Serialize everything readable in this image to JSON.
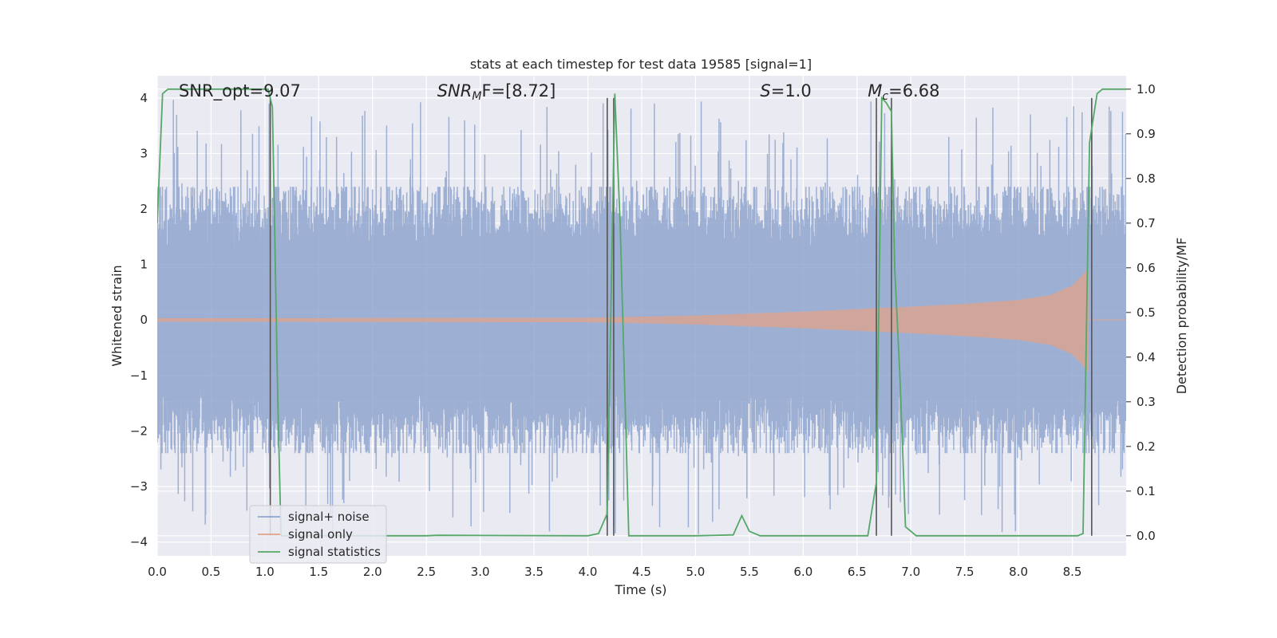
{
  "chart_data": {
    "type": "line",
    "title": "stats at each timestep for test data 19585 [signal=1]",
    "xlabel": "Time (s)",
    "ylabel": "Whitened strain",
    "y2label": "Detection probability/MF",
    "xlim": [
      0.0,
      9.0
    ],
    "ylim": [
      -4.25,
      4.4
    ],
    "y2lim": [
      -0.045,
      1.03
    ],
    "xticks": [
      0.0,
      0.5,
      1.0,
      1.5,
      2.0,
      2.5,
      3.0,
      3.5,
      4.0,
      4.5,
      5.0,
      5.5,
      6.0,
      6.5,
      7.0,
      7.5,
      8.0,
      8.5
    ],
    "xtick_labels": [
      "0.0",
      "0.5",
      "1.0",
      "1.5",
      "2.0",
      "2.5",
      "3.0",
      "3.5",
      "4.0",
      "4.5",
      "5.0",
      "5.5",
      "6.0",
      "6.5",
      "7.0",
      "7.5",
      "8.0",
      "8.5"
    ],
    "yticks": [
      -4,
      -3,
      -2,
      -1,
      0,
      1,
      2,
      3,
      4
    ],
    "ytick_labels": [
      "−4",
      "−3",
      "−2",
      "−1",
      "0",
      "1",
      "2",
      "3",
      "4"
    ],
    "y2ticks": [
      0.0,
      0.1,
      0.2,
      0.3,
      0.4,
      0.5,
      0.6,
      0.7,
      0.8,
      0.9,
      1.0
    ],
    "y2tick_labels": [
      "0.0",
      "0.1",
      "0.2",
      "0.3",
      "0.4",
      "0.5",
      "0.6",
      "0.7",
      "0.8",
      "0.9",
      "1.0"
    ],
    "grid": true,
    "legend": {
      "position": "lower-left",
      "entries": [
        {
          "label": "signal+ noise",
          "color": "#8fa6cf"
        },
        {
          "label": "signal only",
          "color": "#e1a38a"
        },
        {
          "label": "signal statistics",
          "color": "#55a868"
        }
      ]
    },
    "annotations": [
      {
        "x": 0.2,
        "text": "SNR_opt=9.07",
        "italic_prefix": "",
        "sub": "",
        "rest": ""
      },
      {
        "x": 2.6,
        "text": "",
        "italic_prefix": "SNR",
        "sub": "M",
        "rest": "F=[8.72]"
      },
      {
        "x": 5.6,
        "text": "",
        "italic_prefix": "S",
        "sub": "",
        "rest": "=1.0"
      },
      {
        "x": 6.6,
        "text": "",
        "italic_prefix": "M",
        "sub": "c",
        "rest": "=6.68"
      }
    ],
    "series": [
      {
        "name": "signal+ noise",
        "kind": "noise",
        "color": "#8fa6cf",
        "typical_abs_max": 1.6,
        "peak_abs_max": 4.0
      },
      {
        "name": "signal only",
        "kind": "chirp",
        "color": "#e1a38a",
        "envelope_x": [
          0.0,
          4.0,
          5.0,
          6.0,
          7.0,
          7.5,
          8.0,
          8.3,
          8.5,
          8.6,
          8.65
        ],
        "envelope_y": [
          0.03,
          0.04,
          0.08,
          0.15,
          0.24,
          0.29,
          0.36,
          0.45,
          0.62,
          0.82,
          0.95
        ]
      },
      {
        "name": "signal statistics",
        "kind": "line",
        "color": "#55a868",
        "x": [
          0.0,
          0.05,
          0.1,
          1.0,
          1.03,
          1.07,
          1.12,
          1.15,
          2.5,
          2.6,
          4.0,
          4.1,
          4.18,
          4.25,
          4.3,
          4.38,
          5.0,
          5.35,
          5.43,
          5.5,
          5.6,
          6.6,
          6.68,
          6.73,
          6.77,
          6.82,
          6.85,
          6.9,
          6.95,
          7.05,
          8.55,
          8.6,
          8.66,
          8.73,
          8.78,
          9.0
        ],
        "y": [
          0.7,
          0.99,
          1.0,
          1.0,
          1.0,
          0.96,
          0.3,
          0.0,
          0.0,
          0.001,
          0.0,
          0.005,
          0.05,
          0.99,
          0.7,
          0.0,
          0.0,
          0.002,
          0.045,
          0.01,
          0.0,
          0.0,
          0.12,
          0.98,
          0.97,
          0.95,
          0.6,
          0.35,
          0.02,
          0.0,
          0.0,
          0.005,
          0.88,
          0.99,
          1.0,
          1.0
        ]
      }
    ],
    "vlines": [
      1.05,
      4.18,
      4.24,
      6.68,
      6.82,
      8.68
    ]
  }
}
